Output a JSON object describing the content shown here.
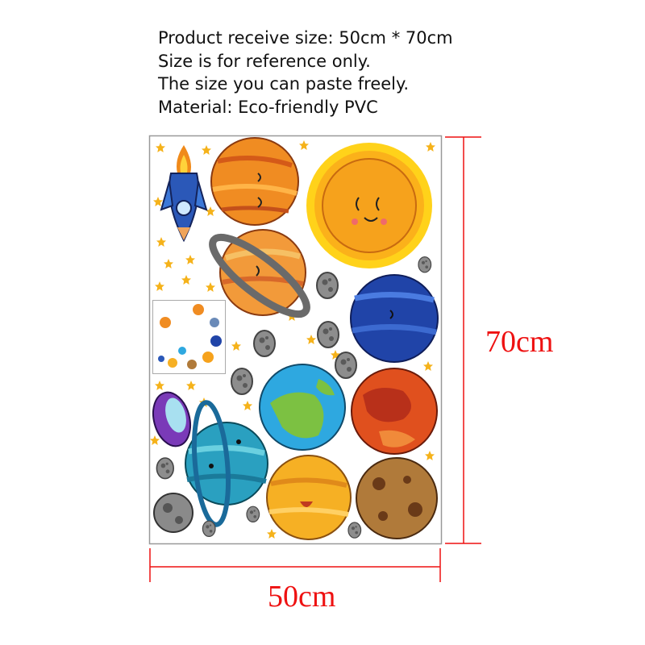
{
  "info_lines": [
    "Product receive size: 50cm * 70cm",
    "Size is for reference only.",
    "The size you can paste freely.",
    "Material: Eco-friendly PVC"
  ],
  "dimensions": {
    "height_label": "70cm",
    "width_label": "50cm"
  },
  "colors": {
    "dimension_lines": "#ee1111",
    "sheet_border": "#999999",
    "star": "#f5b21a"
  },
  "stickers": [
    "rocket",
    "orange-planet",
    "sun",
    "saturn",
    "neptune",
    "earth",
    "mars",
    "ufo",
    "uranus",
    "venus",
    "brown-planet",
    "moon",
    "asteroids",
    "stars",
    "preview-thumbnail"
  ]
}
